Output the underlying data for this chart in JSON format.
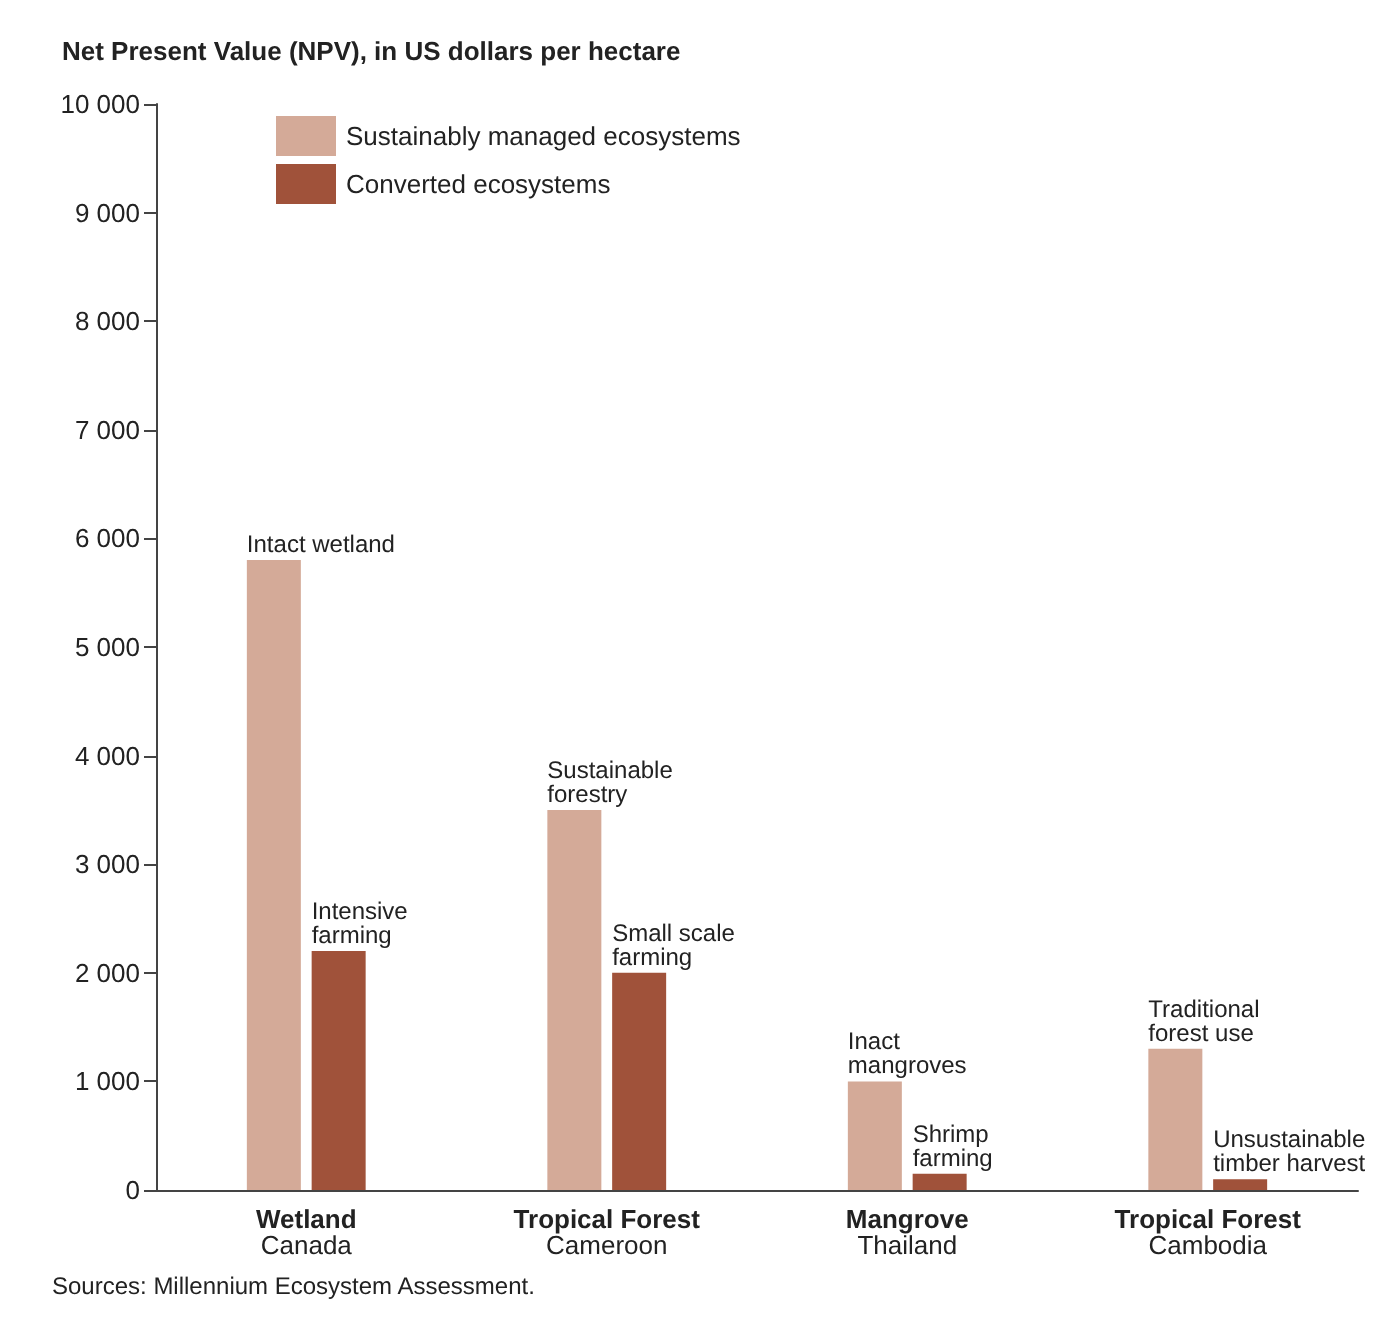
{
  "chart_data": {
    "type": "bar",
    "title": "Net Present Value (NPV), in US dollars per hectare",
    "categories": [
      "Wetland\nCanada",
      "Tropical Forest\nCameroon",
      "Mangrove\nThailand",
      "Tropical Forest\nCambodia"
    ],
    "series": [
      {
        "name": "Sustainably managed ecosystems",
        "color": "#d4aa98",
        "values": [
          5800,
          3500,
          1000,
          1300
        ]
      },
      {
        "name": "Converted ecosystems",
        "color": "#a0523a",
        "values": [
          2200,
          2000,
          150,
          100
        ]
      }
    ],
    "ylim": [
      0,
      10000
    ],
    "yticks": [
      0,
      {
        "value": 1000,
        "label": "1 000"
      },
      {
        "value": 2000,
        "label": "2 000"
      },
      {
        "value": 3000,
        "label": "3 000"
      },
      {
        "value": 4000,
        "label": "4 000"
      },
      {
        "value": 5000,
        "label": "5 000"
      },
      {
        "value": 6000,
        "label": "6 000"
      },
      {
        "value": 7000,
        "label": "7 000"
      },
      {
        "value": 8000,
        "label": "8 000"
      },
      {
        "value": 9000,
        "label": "9 000"
      },
      {
        "value": 10000,
        "label": "10 000"
      }
    ],
    "legend": "top left",
    "grid": false,
    "annotations": [
      {
        "text": "Intact wetland",
        "x": "Wetland\nCanada",
        "y": 5800
      },
      {
        "text": "Intensive\nfarming",
        "x": "Wetland\nCanada",
        "y": 2200
      },
      {
        "text": "Sustainable\nforestry",
        "x": "Tropical Forest\nCameroon",
        "y": 3500
      },
      {
        "text": "Small scale\nfarming",
        "x": "Tropical Forest\nCameroon",
        "y": 2000
      },
      {
        "text": "Inact\nmangroves",
        "x": "Mangrove\nThailand",
        "y": 1000
      },
      {
        "text": "Shrimp\nfarming",
        "x": "Mangrove\nThailand",
        "y": 150
      },
      {
        "text": "Traditional\nforest use",
        "x": "Tropical Forest\nCambodia",
        "y": 1300
      },
      {
        "text": "Unsustainable\ntimber harvest",
        "x": "Tropical Forest\nCambodia",
        "y": 100
      },
      "Sources: Millennium Ecosystem Assessment."
    ]
  }
}
